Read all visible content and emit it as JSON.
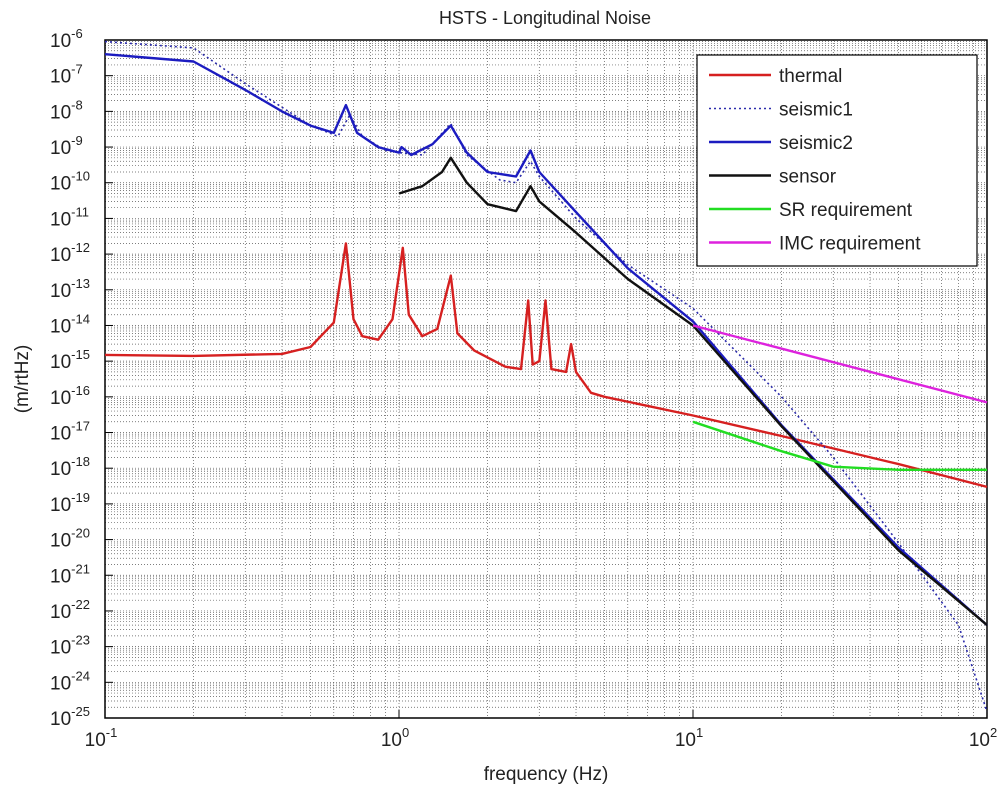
{
  "chart_data": {
    "type": "line",
    "title": "HSTS - Longitudinal Noise",
    "xlabel": "frequency (Hz)",
    "ylabel": "(m/rtHz)",
    "x_scale": "log",
    "y_scale": "log",
    "xlim": [
      0.1,
      100
    ],
    "ylim": [
      1e-25,
      1e-06
    ],
    "grid": true,
    "legend_position": "top-right",
    "x_ticks": [
      {
        "base": "10",
        "exp": "-1",
        "value": 0.1
      },
      {
        "base": "10",
        "exp": "0",
        "value": 1
      },
      {
        "base": "10",
        "exp": "1",
        "value": 10
      },
      {
        "base": "10",
        "exp": "2",
        "value": 100
      }
    ],
    "y_ticks": [
      {
        "base": "10",
        "exp": "-6",
        "value": 1e-06
      },
      {
        "base": "10",
        "exp": "-7",
        "value": 1e-07
      },
      {
        "base": "10",
        "exp": "-8",
        "value": 1e-08
      },
      {
        "base": "10",
        "exp": "-9",
        "value": 1e-09
      },
      {
        "base": "10",
        "exp": "-10",
        "value": 1e-10
      },
      {
        "base": "10",
        "exp": "-11",
        "value": 1e-11
      },
      {
        "base": "10",
        "exp": "-12",
        "value": 1e-12
      },
      {
        "base": "10",
        "exp": "-13",
        "value": 1e-13
      },
      {
        "base": "10",
        "exp": "-14",
        "value": 1e-14
      },
      {
        "base": "10",
        "exp": "-15",
        "value": 1e-15
      },
      {
        "base": "10",
        "exp": "-16",
        "value": 1e-16
      },
      {
        "base": "10",
        "exp": "-17",
        "value": 1e-17
      },
      {
        "base": "10",
        "exp": "-18",
        "value": 1e-18
      },
      {
        "base": "10",
        "exp": "-19",
        "value": 1e-19
      },
      {
        "base": "10",
        "exp": "-20",
        "value": 1e-20
      },
      {
        "base": "10",
        "exp": "-21",
        "value": 1e-21
      },
      {
        "base": "10",
        "exp": "-22",
        "value": 1e-22
      },
      {
        "base": "10",
        "exp": "-23",
        "value": 1e-23
      },
      {
        "base": "10",
        "exp": "-24",
        "value": 1e-24
      },
      {
        "base": "10",
        "exp": "-25",
        "value": 1e-25
      }
    ],
    "series": [
      {
        "name": "thermal",
        "color": "#d62020",
        "style": "solid",
        "points": [
          [
            0.1,
            1.5e-15
          ],
          [
            0.2,
            1.4e-15
          ],
          [
            0.4,
            1.6e-15
          ],
          [
            0.5,
            2.5e-15
          ],
          [
            0.6,
            1.2e-14
          ],
          [
            0.66,
            2e-12
          ],
          [
            0.7,
            1.5e-14
          ],
          [
            0.75,
            5e-15
          ],
          [
            0.85,
            4e-15
          ],
          [
            0.95,
            1.5e-14
          ],
          [
            1.03,
            1.5e-12
          ],
          [
            1.08,
            2e-14
          ],
          [
            1.2,
            5e-15
          ],
          [
            1.35,
            8e-15
          ],
          [
            1.5,
            2.5e-13
          ],
          [
            1.58,
            6e-15
          ],
          [
            1.8,
            2e-15
          ],
          [
            2.3,
            7e-16
          ],
          [
            2.6,
            6e-16
          ],
          [
            2.75,
            5e-14
          ],
          [
            2.85,
            8e-16
          ],
          [
            3.0,
            1e-15
          ],
          [
            3.15,
            5e-14
          ],
          [
            3.3,
            6e-16
          ],
          [
            3.7,
            5e-16
          ],
          [
            3.85,
            3e-15
          ],
          [
            4.0,
            5e-16
          ],
          [
            4.5,
            1.3e-16
          ],
          [
            5.0,
            1e-16
          ],
          [
            10,
            3e-17
          ],
          [
            20,
            8e-18
          ],
          [
            50,
            1.3e-18
          ],
          [
            100,
            3e-19
          ]
        ]
      },
      {
        "name": "seismic1",
        "color": "#2a2aaa",
        "style": "dotted",
        "points": [
          [
            0.1,
            9e-07
          ],
          [
            0.2,
            6e-07
          ],
          [
            0.3,
            6e-08
          ],
          [
            0.5,
            4e-09
          ],
          [
            0.62,
            2e-09
          ],
          [
            0.68,
            8e-09
          ],
          [
            0.75,
            2e-09
          ],
          [
            0.9,
            8e-10
          ],
          [
            1.0,
            7e-10
          ],
          [
            1.2,
            6e-10
          ],
          [
            1.5,
            4.5e-09
          ],
          [
            1.7,
            6e-10
          ],
          [
            2.2,
            1.2e-10
          ],
          [
            2.5,
            1e-10
          ],
          [
            2.8,
            4e-10
          ],
          [
            3.0,
            1.5e-10
          ],
          [
            4,
            1e-11
          ],
          [
            6,
            5e-13
          ],
          [
            10,
            3e-14
          ],
          [
            20,
            1e-16
          ],
          [
            30,
            2e-18
          ],
          [
            50,
            8e-21
          ],
          [
            80,
            4e-23
          ],
          [
            100,
            1.5e-25
          ]
        ]
      },
      {
        "name": "seismic2",
        "color": "#1c1cc0",
        "style": "solid",
        "points": [
          [
            0.1,
            4e-07
          ],
          [
            0.2,
            2.5e-07
          ],
          [
            0.3,
            4e-08
          ],
          [
            0.4,
            1e-08
          ],
          [
            0.5,
            4e-09
          ],
          [
            0.6,
            2.5e-09
          ],
          [
            0.66,
            1.5e-08
          ],
          [
            0.72,
            2.5e-09
          ],
          [
            0.85,
            1e-09
          ],
          [
            1.0,
            7e-10
          ],
          [
            1.02,
            1e-09
          ],
          [
            1.1,
            6e-10
          ],
          [
            1.3,
            1.2e-09
          ],
          [
            1.5,
            4e-09
          ],
          [
            1.7,
            7e-10
          ],
          [
            2.0,
            2e-10
          ],
          [
            2.5,
            1.5e-10
          ],
          [
            2.8,
            8e-10
          ],
          [
            3.0,
            2e-10
          ],
          [
            4,
            1.5e-11
          ],
          [
            6,
            4e-13
          ],
          [
            10,
            1.3e-14
          ],
          [
            20,
            1.6e-17
          ],
          [
            50,
            6e-21
          ],
          [
            100,
            4e-23
          ]
        ]
      },
      {
        "name": "sensor",
        "color": "#111111",
        "style": "solid",
        "points": [
          [
            1.0,
            5e-11
          ],
          [
            1.2,
            8e-11
          ],
          [
            1.4,
            2e-10
          ],
          [
            1.5,
            5e-10
          ],
          [
            1.7,
            1e-10
          ],
          [
            2.0,
            2.5e-11
          ],
          [
            2.5,
            1.6e-11
          ],
          [
            2.8,
            8e-11
          ],
          [
            3.0,
            3e-11
          ],
          [
            4,
            4e-12
          ],
          [
            6,
            2e-13
          ],
          [
            10,
            1e-14
          ],
          [
            20,
            1.5e-17
          ],
          [
            50,
            5e-21
          ],
          [
            100,
            4e-23
          ]
        ]
      },
      {
        "name": "SR requirement",
        "color": "#22dd22",
        "style": "solid",
        "points": [
          [
            10,
            2e-17
          ],
          [
            20,
            3e-18
          ],
          [
            30,
            1.1e-18
          ],
          [
            50,
            9e-19
          ],
          [
            100,
            9e-19
          ]
        ]
      },
      {
        "name": "IMC requirement",
        "color": "#dd22dd",
        "style": "solid",
        "points": [
          [
            10,
            1e-14
          ],
          [
            100,
            7e-17
          ]
        ]
      }
    ]
  }
}
